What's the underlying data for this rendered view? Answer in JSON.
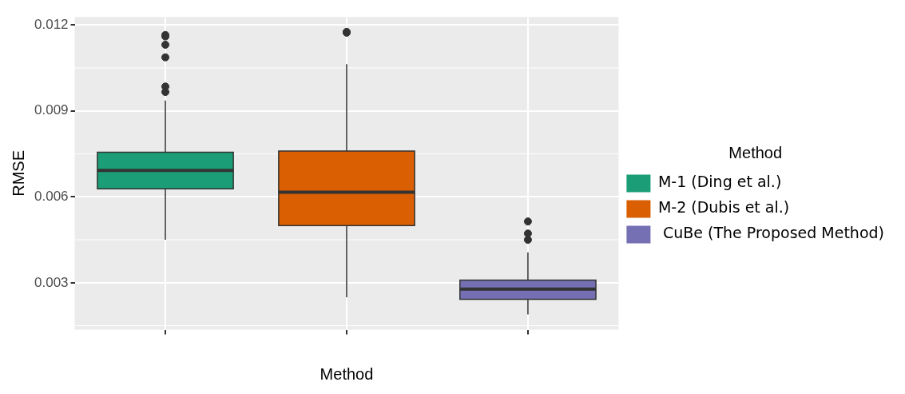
{
  "chart_data": {
    "type": "box",
    "xlabel": "Method",
    "ylabel": "RMSE",
    "legend_title": "Method",
    "categories": [
      null,
      null,
      null
    ],
    "ylim": [
      0.00136,
      0.01228
    ],
    "yticks": [
      0.003,
      0.006,
      0.009,
      0.012
    ],
    "grid": true,
    "legend": "right",
    "series": [
      {
        "name": "M-1 (Ding et al.)",
        "color": "#1b9e77",
        "boxes": [
          {
            "low": 0.0045,
            "q1": 0.00628,
            "median": 0.00692,
            "q3": 0.00756,
            "high": 0.00936,
            "outliers": [
              0.01165,
              0.0116,
              0.01131,
              0.01087,
              0.00985,
              0.00966
            ]
          },
          null,
          null
        ]
      },
      {
        "name": "M-2 (Dubis et al.)",
        "color": "#d95f02",
        "boxes": [
          null,
          {
            "low": 0.00249,
            "q1": 0.005,
            "median": 0.00616,
            "q3": 0.0076,
            "high": 0.01063,
            "outliers": [
              0.01176,
              0.01173
            ]
          },
          null
        ]
      },
      {
        "name": " CuBe (The Proposed Method)",
        "color": "#7570b3",
        "boxes": [
          null,
          null,
          {
            "low": 0.00189,
            "q1": 0.00242,
            "median": 0.00278,
            "q3": 0.00309,
            "high": 0.00406,
            "outliers": [
              0.00514,
              0.00472,
              0.0045
            ]
          }
        ]
      }
    ]
  }
}
